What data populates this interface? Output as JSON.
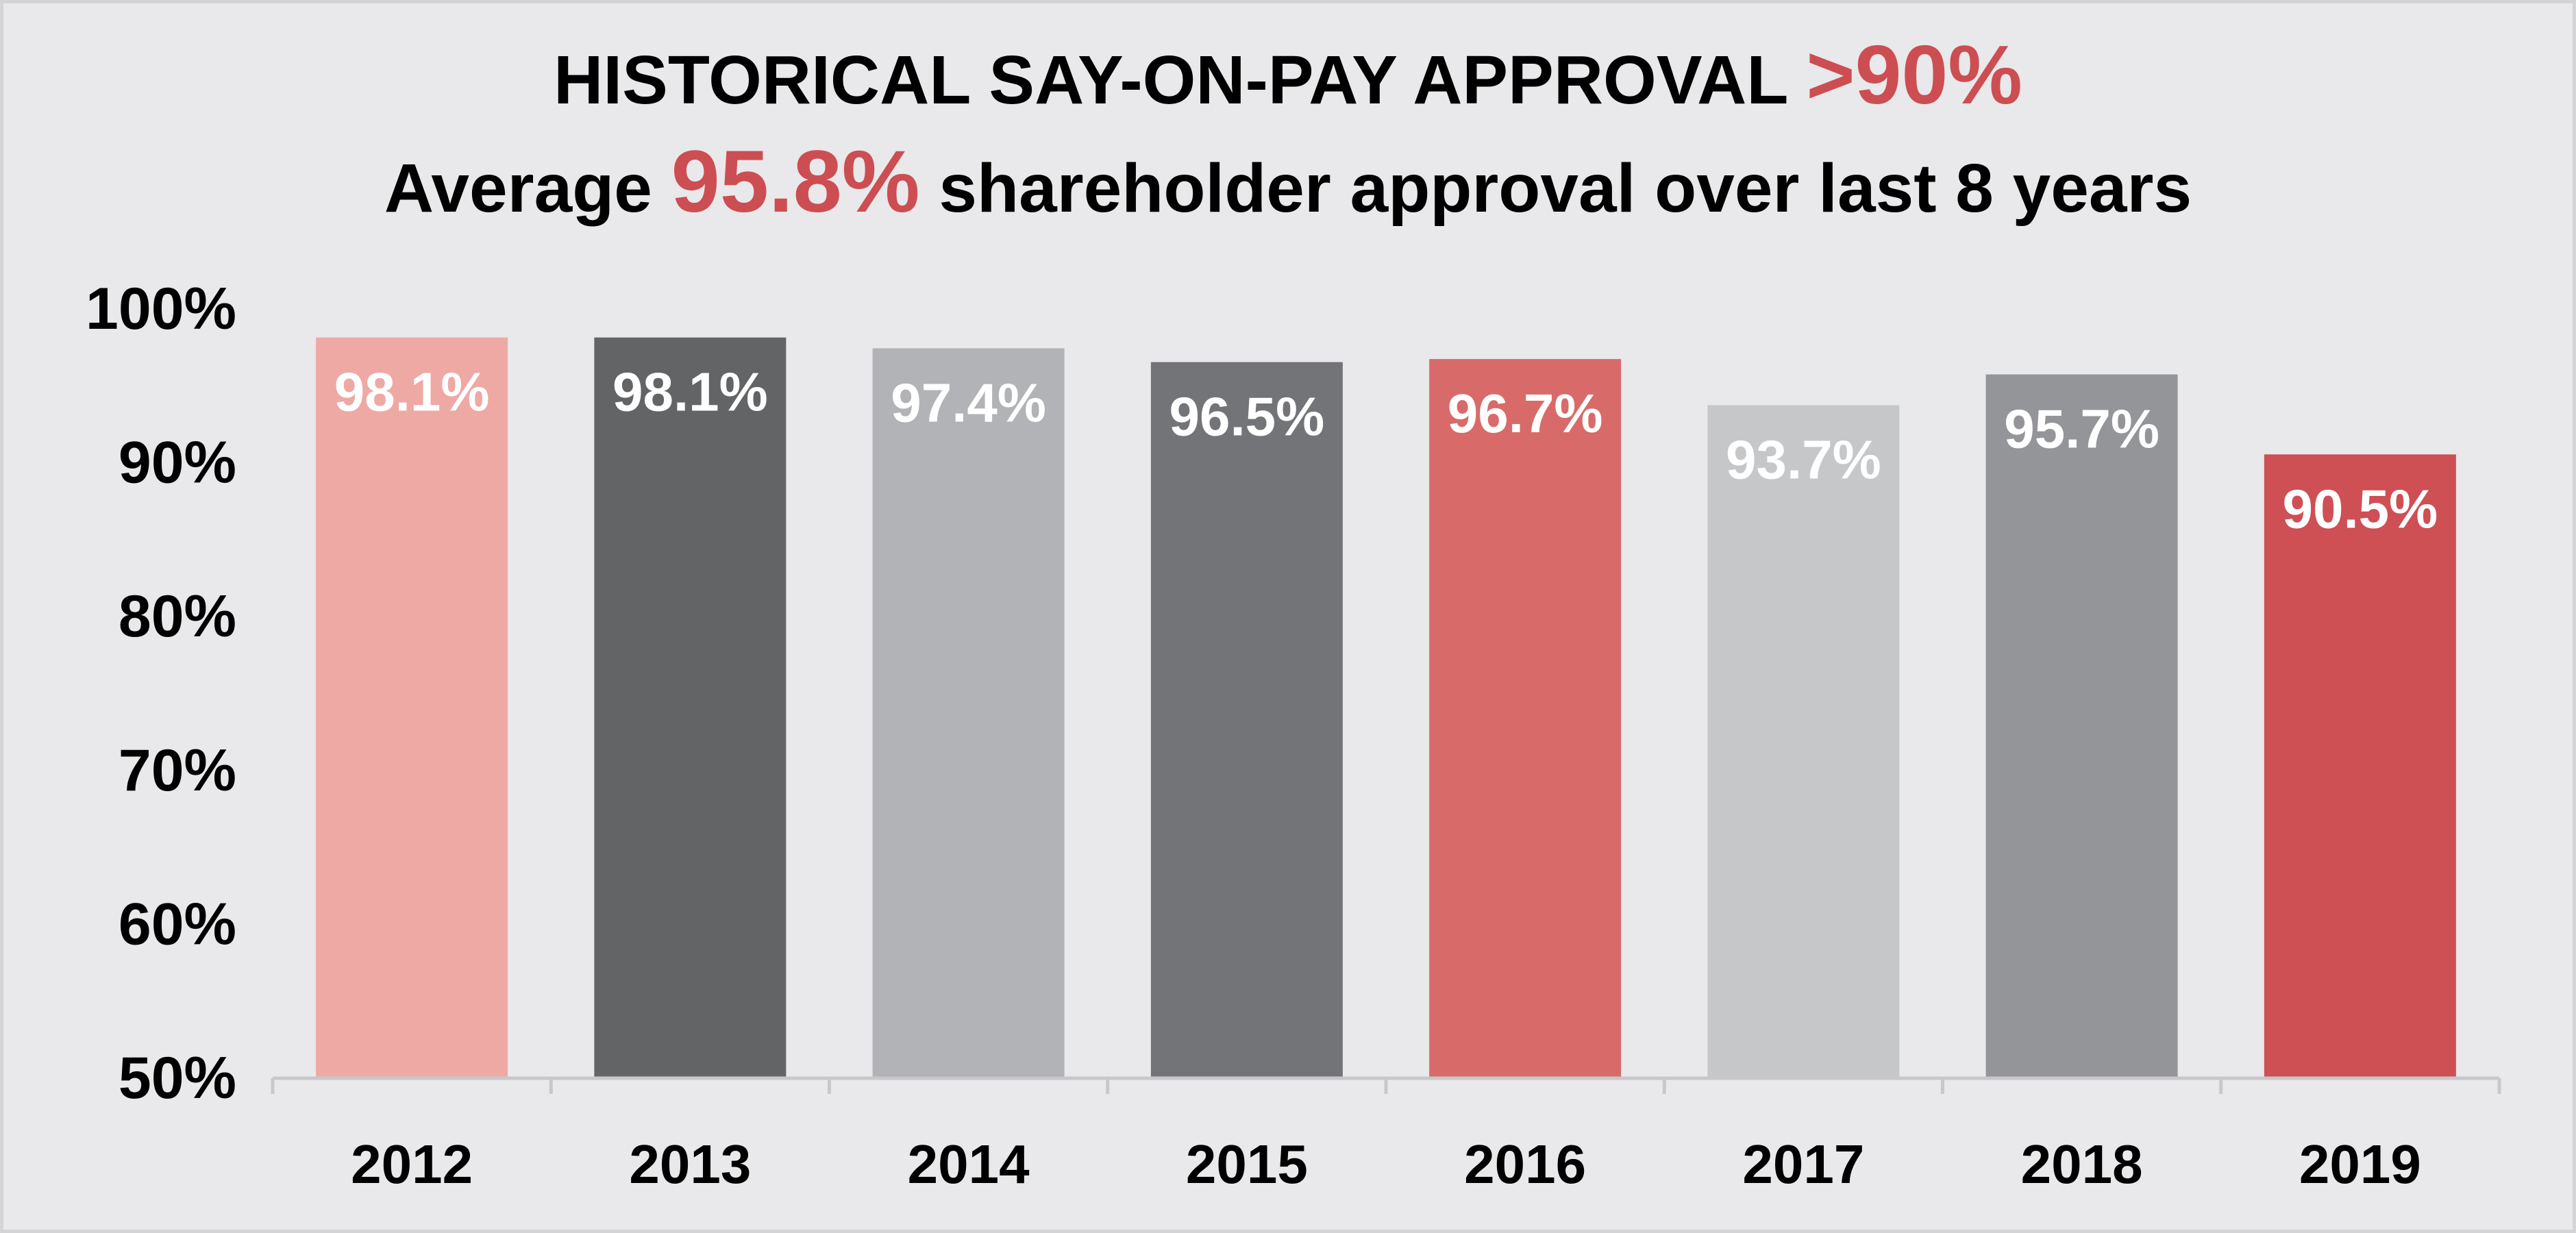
{
  "title": {
    "line1_text": "HISTORICAL SAY-ON-PAY APPROVAL ",
    "line1_highlight": ">90%",
    "line2_prefix": "Average ",
    "line2_highlight": "95.8%",
    "line2_suffix": " shareholder approval over last 8 years",
    "highlight_color": "#cc4e52"
  },
  "chart_data": {
    "type": "bar",
    "title": "HISTORICAL SAY-ON-PAY APPROVAL >90%",
    "subtitle": "Average 95.8% shareholder approval over last 8 years",
    "xlabel": "",
    "ylabel": "",
    "categories": [
      "2012",
      "2013",
      "2014",
      "2015",
      "2016",
      "2017",
      "2018",
      "2019"
    ],
    "values": [
      98.1,
      98.1,
      97.4,
      96.5,
      96.7,
      93.7,
      95.7,
      90.5
    ],
    "data_labels": [
      "98.1%",
      "98.1%",
      "97.4%",
      "96.5%",
      "96.7%",
      "93.7%",
      "95.7%",
      "90.5%"
    ],
    "bar_colors": [
      "#eea9a5",
      "#636466",
      "#b2b3b6",
      "#737478",
      "#d86b6a",
      "#c6c7c9",
      "#949598",
      "#ce4f54"
    ],
    "ylim": [
      50,
      100
    ],
    "yticks": [
      50,
      60,
      70,
      80,
      90,
      100
    ],
    "ytick_labels": [
      "50%",
      "60%",
      "70%",
      "80%",
      "90%",
      "100%"
    ],
    "grid": false,
    "legend": "none"
  }
}
